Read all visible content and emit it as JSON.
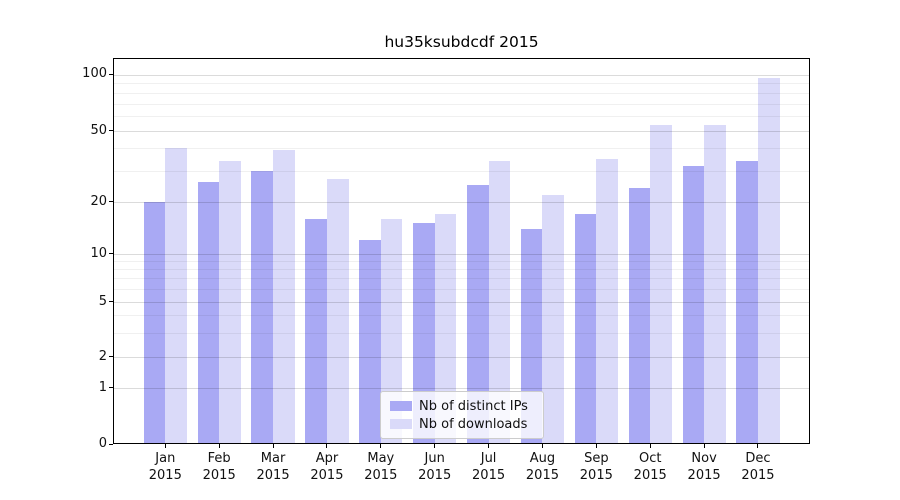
{
  "title": "hu35ksubdcdf 2015",
  "chart_data": {
    "type": "bar",
    "title": "hu35ksubdcdf 2015",
    "categories": [
      "Jan",
      "Feb",
      "Mar",
      "Apr",
      "May",
      "Jun",
      "Jul",
      "Aug",
      "Sep",
      "Oct",
      "Nov",
      "Dec"
    ],
    "xtick_year": "2015",
    "series": [
      {
        "name": "Nb of distinct IPs",
        "color": "#a9a9f4",
        "values": [
          20,
          26,
          30,
          16,
          12,
          15,
          25,
          14,
          17,
          24,
          32,
          34
        ]
      },
      {
        "name": "Nb of downloads",
        "color": "#dadaf9",
        "values": [
          40,
          34,
          39,
          27,
          16,
          17,
          34,
          22,
          35,
          54,
          54,
          96
        ]
      }
    ],
    "yticks": [
      0,
      1,
      2,
      5,
      10,
      20,
      50,
      100
    ],
    "yscale": "symlog",
    "ylim": [
      0,
      122
    ],
    "grid": true,
    "legend_position": "lower center"
  }
}
